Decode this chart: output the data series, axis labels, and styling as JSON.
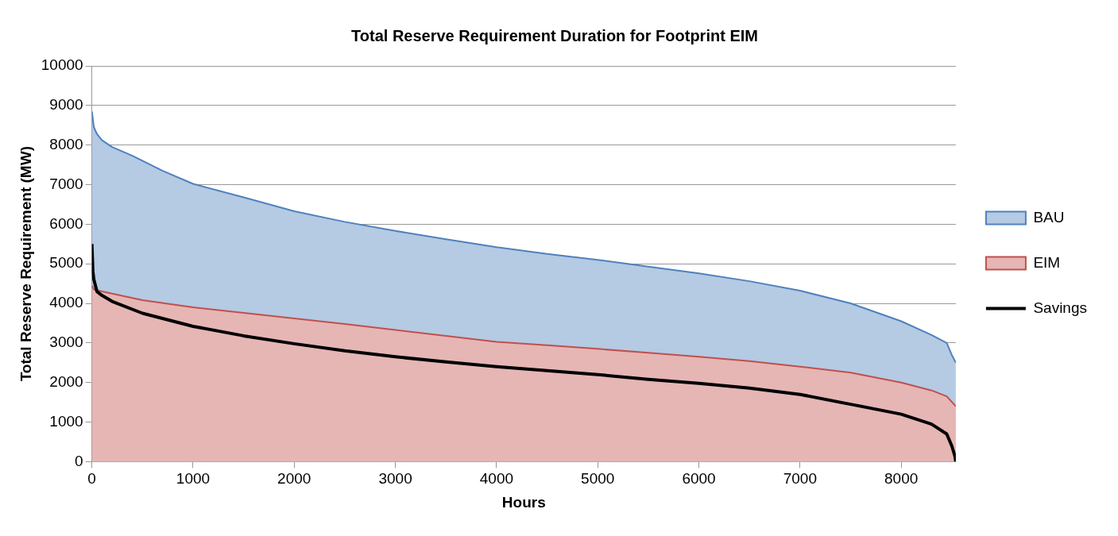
{
  "chart_data": {
    "type": "area",
    "title": "Total Reserve Requirement Duration for Footprint EIM",
    "xlabel": "Hours",
    "ylabel": "Total Reserve Requirement (MW)",
    "xlim": [
      0,
      8540
    ],
    "xticks": [
      0,
      1000,
      2000,
      3000,
      4000,
      5000,
      6000,
      7000,
      8000
    ],
    "ylim": [
      0,
      10000
    ],
    "yticks": [
      0,
      1000,
      2000,
      3000,
      4000,
      5000,
      6000,
      7000,
      8000,
      9000,
      10000
    ],
    "grid": "y",
    "legend": "right",
    "series": [
      {
        "name": "BAU",
        "type": "area",
        "color": "#4f81bd",
        "x": [
          0,
          20,
          50,
          100,
          200,
          400,
          700,
          1000,
          1500,
          2000,
          2500,
          3000,
          3500,
          4000,
          4500,
          5000,
          5500,
          6000,
          6500,
          7000,
          7500,
          8000,
          8300,
          8450,
          8500,
          8540
        ],
        "values": [
          8850,
          8450,
          8280,
          8120,
          7950,
          7730,
          7350,
          7020,
          6680,
          6330,
          6060,
          5830,
          5620,
          5420,
          5250,
          5100,
          4930,
          4760,
          4560,
          4320,
          4000,
          3550,
          3200,
          3000,
          2700,
          2500
        ]
      },
      {
        "name": "EIM",
        "type": "area",
        "color": "#c0504d",
        "x": [
          0,
          20,
          100,
          500,
          1000,
          1500,
          2000,
          2500,
          3000,
          3500,
          4000,
          4500,
          5000,
          5500,
          6000,
          6500,
          7000,
          7500,
          8000,
          8300,
          8450,
          8540
        ],
        "values": [
          4450,
          4350,
          4300,
          4080,
          3900,
          3760,
          3620,
          3480,
          3330,
          3180,
          3030,
          2940,
          2850,
          2750,
          2650,
          2540,
          2400,
          2250,
          2000,
          1800,
          1650,
          1400
        ]
      },
      {
        "name": "Savings",
        "type": "line",
        "color": "#000000",
        "x": [
          0,
          10,
          20,
          50,
          100,
          200,
          500,
          1000,
          1500,
          2000,
          2500,
          3000,
          3500,
          4000,
          4500,
          5000,
          5500,
          6000,
          6500,
          7000,
          7500,
          8000,
          8300,
          8450,
          8500,
          8530,
          8540
        ],
        "values": [
          5500,
          4800,
          4600,
          4300,
          4200,
          4050,
          3750,
          3420,
          3180,
          2980,
          2800,
          2650,
          2520,
          2400,
          2300,
          2200,
          2080,
          1980,
          1860,
          1700,
          1450,
          1200,
          950,
          700,
          400,
          150,
          0
        ]
      }
    ]
  }
}
